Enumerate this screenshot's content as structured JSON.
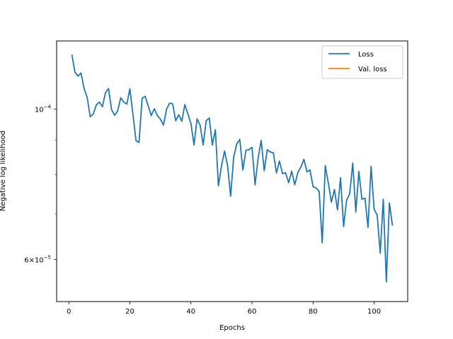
{
  "chart_data": {
    "type": "line",
    "title": "",
    "xlabel": "Epochs",
    "ylabel": "Negative log likelihood",
    "yscale": "log",
    "xlim": [
      -4,
      111
    ],
    "ylim": [
      5.2e-05,
      0.000126
    ],
    "xticks": [
      0,
      20,
      40,
      60,
      80,
      100
    ],
    "yticks": [
      {
        "value": 0.0001,
        "base": "10",
        "exp": "−4"
      },
      {
        "value": 6e-05,
        "base": "6×10",
        "exp": "−5"
      }
    ],
    "y_minor_ticks": [
      7e-05,
      8e-05,
      9e-05,
      5e-05
    ],
    "grid": false,
    "legend": {
      "position": "top-right"
    },
    "series": [
      {
        "name": "Loss",
        "color": "#1f77b4",
        "x": [
          1,
          2,
          3,
          4,
          5,
          6,
          7,
          8,
          9,
          10,
          11,
          12,
          13,
          14,
          15,
          16,
          17,
          18,
          19,
          20,
          21,
          22,
          23,
          24,
          25,
          26,
          27,
          28,
          29,
          30,
          31,
          32,
          33,
          34,
          35,
          36,
          37,
          38,
          39,
          40,
          41,
          42,
          43,
          44,
          45,
          46,
          47,
          48,
          49,
          50,
          51,
          52,
          53,
          54,
          55,
          56,
          57,
          58,
          59,
          60,
          61,
          62,
          63,
          64,
          65,
          66,
          67,
          68,
          69,
          70,
          71,
          72,
          73,
          74,
          75,
          76,
          77,
          78,
          79,
          80,
          81,
          82,
          83,
          84,
          85,
          86,
          87,
          88,
          89,
          90,
          91,
          92,
          93,
          94,
          95,
          96,
          97,
          98,
          99,
          100,
          101,
          102,
          103,
          104,
          105,
          106
        ],
        "values": [
          0.0001203,
          0.0001133,
          0.0001118,
          0.000113,
          0.0001071,
          0.0001041,
          9.74e-05,
          9.83e-05,
          0.0001014,
          0.0001024,
          0.0001008,
          0.0001057,
          0.0001072,
          9.98e-05,
          9.79e-05,
          9.94e-05,
          0.0001039,
          0.0001024,
          0.0001017,
          0.0001071,
          9.82e-05,
          8.98e-05,
          8.93e-05,
          0.0001037,
          0.0001044,
          0.0001011,
          9.78e-05,
          0.0001001,
          9.78e-05,
          9.66e-05,
          9.47e-05,
          9.99e-05,
          0.000102,
          0.0001018,
          9.61e-05,
          9.81e-05,
          9.59e-05,
          0.0001015,
          9.83e-05,
          9.52e-05,
          8.85e-05,
          9.67e-05,
          9.47e-05,
          8.85e-05,
          9.61e-05,
          9.7e-05,
          8.85e-05,
          9.32e-05,
          7.7e-05,
          8.24e-05,
          8.67e-05,
          8.25e-05,
          7.44e-05,
          8.5e-05,
          8.88e-05,
          9.02e-05,
          8.13e-05,
          8.69e-05,
          8.71e-05,
          8.78e-05,
          7.73e-05,
          8.46e-05,
          8.99e-05,
          8.11e-05,
          8.71e-05,
          8.64e-05,
          8.62e-05,
          8.05e-05,
          8.38e-05,
          8.03e-05,
          8.05e-05,
          7.79e-05,
          8.1e-05,
          7.73e-05,
          8.06e-05,
          8.21e-05,
          8.43e-05,
          8.08e-05,
          8.13e-05,
          7.68e-05,
          7.65e-05,
          7.56e-05,
          6.35e-05,
          8.25e-05,
          7.78e-05,
          7.29e-05,
          7.61e-05,
          7.1e-05,
          7.92e-05,
          6.71e-05,
          7.34e-05,
          7.5e-05,
          8.32e-05,
          7.05e-05,
          8.09e-05,
          7.36e-05,
          7.39e-05,
          6.69e-05,
          8.23e-05,
          7.11e-05,
          6.98e-05,
          6.13e-05,
          7.36e-05,
          5.56e-05,
          7.27e-05,
          6.73e-05
        ]
      },
      {
        "name": "Val. loss",
        "color": "#ff7f0e",
        "x": [],
        "values": []
      }
    ]
  }
}
